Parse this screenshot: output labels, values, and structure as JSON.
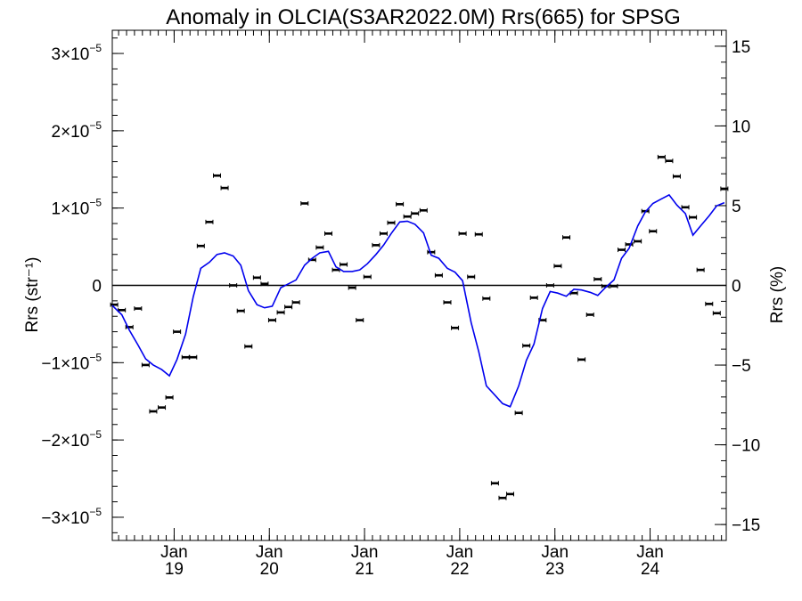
{
  "chart_data": {
    "type": "scatter",
    "title": "Anomaly in OLCIA(S3AR2022.0M) Rrs(665) for SPSG",
    "ylabel_left": "Rrs (str⁻¹)",
    "ylabel_right": "Rrs (%)",
    "ylim": [
      -3.3e-05,
      3.3e-05
    ],
    "ylim_right": [
      -16,
      16
    ],
    "xlim": [
      2018.35,
      2024.8
    ],
    "y_ticks_left": [
      {
        "value": 3e-05,
        "mant": "3",
        "prefix": "",
        "exp": "−5"
      },
      {
        "value": 2e-05,
        "mant": "2",
        "prefix": "",
        "exp": "−5"
      },
      {
        "value": 1e-05,
        "mant": "1",
        "prefix": "",
        "exp": "−5"
      },
      {
        "value": 0,
        "mant": "0",
        "prefix": "",
        "exp": ""
      },
      {
        "value": -1e-05,
        "mant": "1",
        "prefix": "−",
        "exp": "−5"
      },
      {
        "value": -2e-05,
        "mant": "2",
        "prefix": "−",
        "exp": "−5"
      },
      {
        "value": -3e-05,
        "mant": "3",
        "prefix": "−",
        "exp": "−5"
      }
    ],
    "y_ticks_right": [
      {
        "value": 15,
        "label": "15"
      },
      {
        "value": 10,
        "label": "10"
      },
      {
        "value": 5,
        "label": "5"
      },
      {
        "value": 0,
        "label": "0"
      },
      {
        "value": -5,
        "label": "−5"
      },
      {
        "value": -10,
        "label": "−10"
      },
      {
        "value": -15,
        "label": "−15"
      }
    ],
    "x_ticks": [
      {
        "value": 2019.0,
        "line1": "Jan",
        "line2": "19"
      },
      {
        "value": 2020.0,
        "line1": "Jan",
        "line2": "20"
      },
      {
        "value": 2021.0,
        "line1": "Jan",
        "line2": "21"
      },
      {
        "value": 2022.0,
        "line1": "Jan",
        "line2": "22"
      },
      {
        "value": 2023.0,
        "line1": "Jan",
        "line2": "23"
      },
      {
        "value": 2024.0,
        "line1": "Jan",
        "line2": "24"
      }
    ],
    "zero_line": true,
    "series": [
      {
        "kind": "points",
        "color": "#000000",
        "points": [
          [
            2018.37,
            -2.5e-06
          ],
          [
            2018.45,
            -3.2e-06
          ],
          [
            2018.53,
            -5.4e-06
          ],
          [
            2018.62,
            -3e-06
          ],
          [
            2018.7,
            -1.03e-05
          ],
          [
            2018.78,
            -1.63e-05
          ],
          [
            2018.87,
            -1.58e-05
          ],
          [
            2018.95,
            -1.45e-05
          ],
          [
            2019.03,
            -6e-06
          ],
          [
            2019.12,
            -9.3e-06
          ],
          [
            2019.2,
            -9.3e-06
          ],
          [
            2019.28,
            5.1e-06
          ],
          [
            2019.37,
            8.2e-06
          ],
          [
            2019.45,
            1.42e-05
          ],
          [
            2019.53,
            1.26e-05
          ],
          [
            2019.62,
            0.0
          ],
          [
            2019.7,
            -3.3e-06
          ],
          [
            2019.78,
            -7.9e-06
          ],
          [
            2019.87,
            1e-06
          ],
          [
            2019.95,
            2e-07
          ],
          [
            2020.03,
            -4.5e-06
          ],
          [
            2020.12,
            -3.5e-06
          ],
          [
            2020.2,
            -2.8e-06
          ],
          [
            2020.28,
            -2.2e-06
          ],
          [
            2020.37,
            1.06e-05
          ],
          [
            2020.45,
            3.3e-06
          ],
          [
            2020.53,
            4.9e-06
          ],
          [
            2020.62,
            6.7e-06
          ],
          [
            2020.7,
            2e-06
          ],
          [
            2020.78,
            2.7e-06
          ],
          [
            2020.87,
            -3e-07
          ],
          [
            2020.95,
            -4.5e-06
          ],
          [
            2021.03,
            1.1e-06
          ],
          [
            2021.12,
            5.2e-06
          ],
          [
            2021.2,
            6.7e-06
          ],
          [
            2021.28,
            8.1e-06
          ],
          [
            2021.37,
            1.05e-05
          ],
          [
            2021.45,
            8.9e-06
          ],
          [
            2021.53,
            9.3e-06
          ],
          [
            2021.62,
            9.7e-06
          ],
          [
            2021.7,
            4.3e-06
          ],
          [
            2021.78,
            1.3e-06
          ],
          [
            2021.87,
            -2.2e-06
          ],
          [
            2021.95,
            -5.5e-06
          ],
          [
            2022.03,
            6.7e-06
          ],
          [
            2022.12,
            1.1e-06
          ],
          [
            2022.2,
            6.6e-06
          ],
          [
            2022.28,
            -1.7e-06
          ],
          [
            2022.37,
            -2.56e-05
          ],
          [
            2022.45,
            -2.75e-05
          ],
          [
            2022.53,
            -2.7e-05
          ],
          [
            2022.62,
            -1.65e-05
          ],
          [
            2022.7,
            -7.8e-06
          ],
          [
            2022.78,
            -1.6e-06
          ],
          [
            2022.87,
            -4.5e-06
          ],
          [
            2022.95,
            0.0
          ],
          [
            2023.03,
            2.5e-06
          ],
          [
            2023.12,
            6.2e-06
          ],
          [
            2023.2,
            -1e-06
          ],
          [
            2023.28,
            -9.6e-06
          ],
          [
            2023.37,
            -3.8e-06
          ],
          [
            2023.45,
            8e-07
          ],
          [
            2023.53,
            -1e-07
          ],
          [
            2023.62,
            -1e-07
          ],
          [
            2023.7,
            4.6e-06
          ],
          [
            2023.78,
            5.3e-06
          ],
          [
            2023.87,
            5.7e-06
          ],
          [
            2023.95,
            9.6e-06
          ],
          [
            2024.03,
            7e-06
          ],
          [
            2024.12,
            1.66e-05
          ],
          [
            2024.2,
            1.61e-05
          ],
          [
            2024.28,
            1.41e-05
          ],
          [
            2024.37,
            1.01e-05
          ],
          [
            2024.45,
            8.8e-06
          ],
          [
            2024.53,
            2e-06
          ],
          [
            2024.62,
            -2.4e-06
          ],
          [
            2024.7,
            -3.6e-06
          ],
          [
            2024.78,
            1.25e-05
          ]
        ]
      },
      {
        "kind": "line",
        "color": "#0000ee",
        "points": [
          [
            2018.35,
            -2.6e-06
          ],
          [
            2018.45,
            -3.8e-06
          ],
          [
            2018.53,
            -5.8e-06
          ],
          [
            2018.62,
            -7.7e-06
          ],
          [
            2018.7,
            -9.5e-06
          ],
          [
            2018.78,
            -1.03e-05
          ],
          [
            2018.87,
            -1.09e-05
          ],
          [
            2018.95,
            -1.17e-05
          ],
          [
            2019.03,
            -9.6e-06
          ],
          [
            2019.12,
            -6.3e-06
          ],
          [
            2019.2,
            -1.5e-06
          ],
          [
            2019.28,
            2.2e-06
          ],
          [
            2019.37,
            3e-06
          ],
          [
            2019.45,
            4e-06
          ],
          [
            2019.53,
            4.2e-06
          ],
          [
            2019.62,
            3.8e-06
          ],
          [
            2019.7,
            2.6e-06
          ],
          [
            2019.78,
            -7e-07
          ],
          [
            2019.87,
            -2.5e-06
          ],
          [
            2019.95,
            -2.9e-06
          ],
          [
            2020.03,
            -2.7e-06
          ],
          [
            2020.12,
            -3e-07
          ],
          [
            2020.2,
            2e-07
          ],
          [
            2020.28,
            7e-07
          ],
          [
            2020.37,
            2.6e-06
          ],
          [
            2020.45,
            3.5e-06
          ],
          [
            2020.53,
            4.2e-06
          ],
          [
            2020.62,
            4.4e-06
          ],
          [
            2020.7,
            2.4e-06
          ],
          [
            2020.78,
            1.8e-06
          ],
          [
            2020.87,
            1.8e-06
          ],
          [
            2020.95,
            2e-06
          ],
          [
            2021.03,
            2.8e-06
          ],
          [
            2021.12,
            4e-06
          ],
          [
            2021.2,
            5.2e-06
          ],
          [
            2021.28,
            6.7e-06
          ],
          [
            2021.37,
            8.2e-06
          ],
          [
            2021.45,
            8.3e-06
          ],
          [
            2021.53,
            7.9e-06
          ],
          [
            2021.62,
            6.8e-06
          ],
          [
            2021.7,
            3.9e-06
          ],
          [
            2021.78,
            3.5e-06
          ],
          [
            2021.87,
            2.2e-06
          ],
          [
            2021.95,
            1.7e-06
          ],
          [
            2022.03,
            6e-07
          ],
          [
            2022.12,
            -4.8e-06
          ],
          [
            2022.2,
            -8.6e-06
          ],
          [
            2022.28,
            -1.3e-05
          ],
          [
            2022.37,
            -1.42e-05
          ],
          [
            2022.45,
            -1.53e-05
          ],
          [
            2022.53,
            -1.57e-05
          ],
          [
            2022.62,
            -1.3e-05
          ],
          [
            2022.7,
            -9.7e-06
          ],
          [
            2022.78,
            -7.6e-06
          ],
          [
            2022.87,
            -3e-06
          ],
          [
            2022.95,
            -8e-07
          ],
          [
            2023.03,
            -1e-06
          ],
          [
            2023.12,
            -1.4e-06
          ],
          [
            2023.2,
            -5e-07
          ],
          [
            2023.28,
            -6e-07
          ],
          [
            2023.37,
            -9e-07
          ],
          [
            2023.45,
            -1.3e-06
          ],
          [
            2023.53,
            -3e-07
          ],
          [
            2023.62,
            7e-07
          ],
          [
            2023.7,
            3.5e-06
          ],
          [
            2023.78,
            4.8e-06
          ],
          [
            2023.87,
            7.7e-06
          ],
          [
            2023.95,
            9.5e-06
          ],
          [
            2024.03,
            1.06e-05
          ],
          [
            2024.12,
            1.12e-05
          ],
          [
            2024.2,
            1.17e-05
          ],
          [
            2024.28,
            1.04e-05
          ],
          [
            2024.37,
            9.3e-06
          ],
          [
            2024.45,
            6.5e-06
          ],
          [
            2024.53,
            7.7e-06
          ],
          [
            2024.62,
            9e-06
          ],
          [
            2024.7,
            1.03e-05
          ],
          [
            2024.78,
            1.07e-05
          ]
        ]
      }
    ]
  }
}
